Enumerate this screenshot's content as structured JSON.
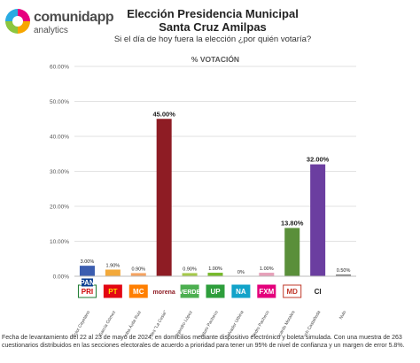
{
  "brand": {
    "name": "comunidapp",
    "tagline": "analytics",
    "ring_colors": [
      "#e6007e",
      "#f7a600",
      "#8cc63f",
      "#29abe2"
    ]
  },
  "header": {
    "title_line1": "Elección Presidencia Municipal",
    "title_line2": "Santa Cruz Amilpas",
    "question": "Si el día de hoy fuera la elección ¿por quién votaría?"
  },
  "chart_data": {
    "type": "bar",
    "title": "% VOTACIÓN",
    "ylim": [
      0,
      60
    ],
    "yticks": [
      0,
      10,
      20,
      30,
      40,
      50,
      60
    ],
    "ytick_labels": [
      "0.00%",
      "10.00%",
      "20.00%",
      "30.00%",
      "40.00%",
      "50.00%",
      "60.00%"
    ],
    "grid": true,
    "categories": [
      "Víctor Cayetano",
      "Reynalda García Gómez",
      "Columba Ávila Ruiz",
      "Paola Morales \"La Cesia\"",
      "Alejandro López",
      "Arturo Pacheco",
      "Cristián Salvador Urbina",
      "Pedro Pacheco",
      "Ricardo Morales",
      "Christian Baruch Castañeda",
      "Nulo"
    ],
    "values": [
      3.0,
      1.9,
      0.9,
      45.0,
      0.9,
      1.0,
      0.0,
      1.0,
      13.8,
      32.0,
      0.5
    ],
    "value_labels": [
      "3.00%",
      "1.90%",
      "0.90%",
      "45.00%",
      "0.90%",
      "1.00%",
      "0%",
      "1.00%",
      "13.80%",
      "32.00%",
      "0.50%"
    ],
    "bar_colors": [
      "#3b5db0",
      "#f2a93b",
      "#f4a261",
      "#8e1c24",
      "#a5c94a",
      "#76b82a",
      "#bdbdbd",
      "#e6a0b8",
      "#5a8f3a",
      "#6b3ea0",
      "#808080"
    ],
    "party_logos": [
      {
        "text": "PRI",
        "bg": "#ffffff",
        "fg": "#cc0000",
        "border": "#1b7a2f"
      },
      {
        "text": "PT",
        "bg": "#e30613",
        "fg": "#ffde00",
        "border": "#e30613"
      },
      {
        "text": "MC",
        "bg": "#ff7f00",
        "fg": "#ffffff",
        "border": "#ff7f00"
      },
      {
        "text": "morena",
        "bg": "#ffffff",
        "fg": "#8e1c24",
        "border": "#ffffff"
      },
      {
        "text": "VERDE",
        "bg": "#4caf50",
        "fg": "#ffffff",
        "border": "#4caf50"
      },
      {
        "text": "UP",
        "bg": "#2e9e3c",
        "fg": "#ffffff",
        "border": "#2e9e3c"
      },
      {
        "text": "NA",
        "bg": "#12a3c9",
        "fg": "#ffffff",
        "border": "#12a3c9"
      },
      {
        "text": "FXM",
        "bg": "#e4007c",
        "fg": "#ffffff",
        "border": "#e4007c"
      },
      {
        "text": "MD",
        "bg": "#ffffff",
        "fg": "#c0392b",
        "border": "#c0392b"
      },
      {
        "text": "CI",
        "bg": "#ffffff",
        "fg": "#222222",
        "border": "#ffffff"
      }
    ],
    "logo_extra": {
      "text": "PAN",
      "bg": "#0a3d91",
      "fg": "#ffffff",
      "border": "#0a3d91"
    }
  },
  "footnote": "Fecha de levantamiento del 22 al 23 de mayo de 2024; en domicilios mediante dispositivo electrónico y boleta simulada. Con una muestra de 263 cuestionarios distribuidos en las secciones electorales de acuerdo a prioridad para tener un 95% de nivel de confianza y un margen de error 5.8%."
}
